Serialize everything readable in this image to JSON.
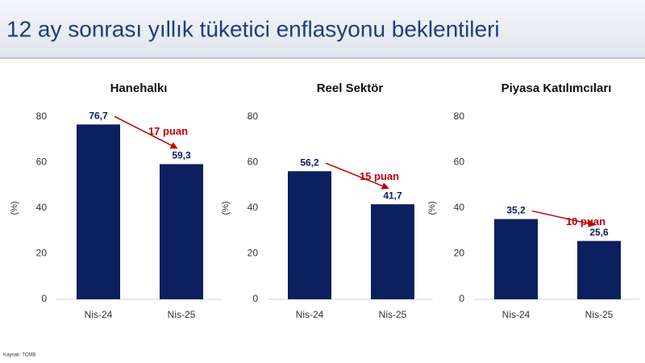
{
  "title": "12 ay sonrası yıllık tüketici enflasyonu beklentileri",
  "source": "Kaynak: TCMB",
  "chart_data": [
    {
      "type": "bar",
      "title": "Hanehalkı",
      "ylabel": "(%)",
      "categories": [
        "Nis-24",
        "Nis-25"
      ],
      "values": [
        76.7,
        59.3
      ],
      "value_labels": [
        "76,7",
        "59,3"
      ],
      "color": "#0c1f5e",
      "ylim": [
        0,
        80
      ],
      "yticks": [
        0,
        20,
        40,
        60,
        80
      ],
      "annotation": "17 puan",
      "annotation_color": "#c00000"
    },
    {
      "type": "bar",
      "title": "Reel Sektör",
      "ylabel": "(%)",
      "categories": [
        "Nis-24",
        "Nis-25"
      ],
      "values": [
        56.2,
        41.7
      ],
      "value_labels": [
        "56,2",
        "41,7"
      ],
      "color": "#0c1f5e",
      "ylim": [
        0,
        80
      ],
      "yticks": [
        0,
        20,
        40,
        60,
        80
      ],
      "annotation": "15 puan",
      "annotation_color": "#c00000"
    },
    {
      "type": "bar",
      "title": "Piyasa Katılımcıları",
      "ylabel": "(%)",
      "categories": [
        "Nis-24",
        "Nis-25"
      ],
      "values": [
        35.2,
        25.6
      ],
      "value_labels": [
        "35,2",
        "25,6"
      ],
      "color": "#0c1f5e",
      "ylim": [
        0,
        80
      ],
      "yticks": [
        0,
        20,
        40,
        60,
        80
      ],
      "annotation": "10 puan",
      "annotation_color": "#c00000"
    }
  ]
}
